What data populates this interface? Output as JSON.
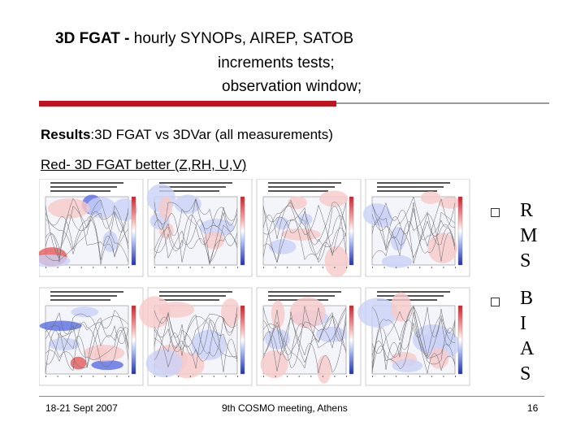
{
  "title": {
    "bold": "3D FGAT -",
    "line1": " hourly SYNOPs, AIREP, SATOB",
    "line2": "increments tests;",
    "line3": "observation window;"
  },
  "results": {
    "bold": "Results",
    "rest": ":3D FGAT vs 3DVar  (all measurements)"
  },
  "red_line": "Red- 3D FGAT better (Z,RH, U,V)",
  "side": {
    "rms": [
      "R",
      "M",
      "S"
    ],
    "bias": [
      "B",
      "I",
      "A",
      "S"
    ]
  },
  "footer": {
    "left": "18-21 Sept 2007",
    "center": "9th COSMO meeting, Athens",
    "right": "16"
  },
  "colors": {
    "accent_red": "#c1121f",
    "rule_gray": "#9a9a9a"
  }
}
